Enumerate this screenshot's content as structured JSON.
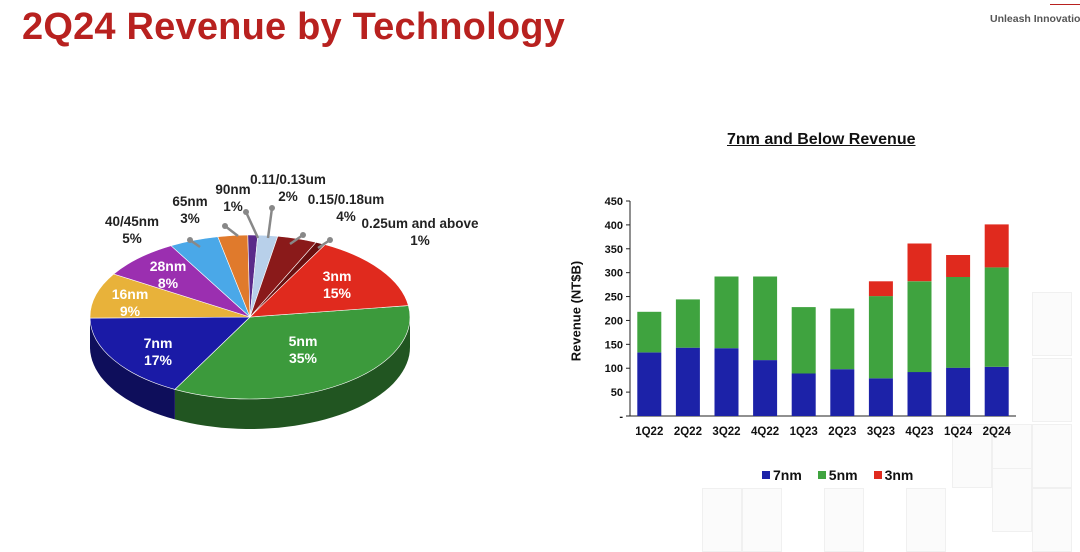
{
  "page": {
    "title": "2Q24 Revenue by Technology",
    "tagline": "Unleash Innovation"
  },
  "chart_data": [
    {
      "type": "pie",
      "title": "",
      "slices": [
        {
          "label": "5nm",
          "pct": "35%",
          "value": 35,
          "color": "#3c9a3c"
        },
        {
          "label": "7nm",
          "pct": "17%",
          "value": 17,
          "color": "#1a1aa6"
        },
        {
          "label": "16nm",
          "pct": "9%",
          "value": 9,
          "color": "#e8b23a"
        },
        {
          "label": "28nm",
          "pct": "8%",
          "value": 8,
          "color": "#9b2fb0"
        },
        {
          "label": "40/45nm",
          "pct": "5%",
          "value": 5,
          "color": "#4aa8e8"
        },
        {
          "label": "65nm",
          "pct": "3%",
          "value": 3,
          "color": "#e07a2c"
        },
        {
          "label": "90nm",
          "pct": "1%",
          "value": 1,
          "color": "#5a2a8a"
        },
        {
          "label": "0.11/0.13um",
          "pct": "2%",
          "value": 2,
          "color": "#b8d0ea"
        },
        {
          "label": "0.15/0.18um",
          "pct": "4%",
          "value": 4,
          "color": "#8a1a1a"
        },
        {
          "label": "0.25um and above",
          "pct": "1%",
          "value": 1,
          "color": "#6a1010"
        },
        {
          "label": "3nm",
          "pct": "15%",
          "value": 15,
          "color": "#e02a1e"
        }
      ]
    },
    {
      "type": "bar",
      "stacked": true,
      "title": "7nm and Below Revenue",
      "ylabel": "Revenue (NT$B)",
      "xlabel": "",
      "ylim": [
        0,
        450
      ],
      "yticks": [
        "-",
        "50",
        "100",
        "150",
        "200",
        "250",
        "300",
        "350",
        "400",
        "450"
      ],
      "categories": [
        "1Q22",
        "2Q22",
        "3Q22",
        "4Q22",
        "1Q23",
        "2Q23",
        "3Q23",
        "4Q23",
        "1Q24",
        "2Q24"
      ],
      "series": [
        {
          "name": "7nm",
          "color": "#1c22a8",
          "values": [
            133,
            143,
            142,
            117,
            89,
            98,
            79,
            92,
            101,
            103
          ]
        },
        {
          "name": "5nm",
          "color": "#3fa33f",
          "values": [
            85,
            101,
            150,
            175,
            139,
            127,
            172,
            190,
            190,
            208
          ]
        },
        {
          "name": "3nm",
          "color": "#e02a1e",
          "values": [
            0,
            0,
            0,
            0,
            0,
            0,
            31,
            79,
            46,
            90
          ]
        }
      ],
      "legend": [
        "7nm",
        "5nm",
        "3nm"
      ]
    }
  ]
}
